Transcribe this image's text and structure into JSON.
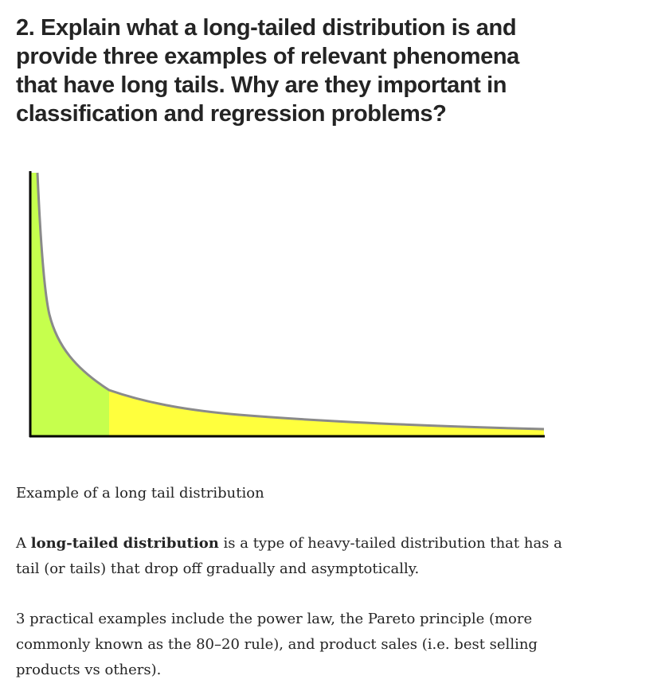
{
  "article": {
    "heading": "2. Explain what a long-tailed distribution is and provide three examples of relevant phenomena that have long tails. Why are they important in classification and regression problems?",
    "figure": {
      "caption": "Example of a long tail distribution",
      "head_color": "#c6ff4d",
      "tail_color": "#ffff3d",
      "curve_color": "#8a8a8a",
      "axis_color": "#000000"
    },
    "paragraph_1": {
      "lead": "A ",
      "bold": "long-tailed distribution",
      "rest": " is a type of heavy-tailed distribution that has a tail (or tails) that drop off gradually and asymptotically."
    },
    "paragraph_2": "3 practical examples include the power law, the Pareto principle (more commonly known as the 80–20 rule), and product sales (i.e. best selling products vs others)."
  }
}
